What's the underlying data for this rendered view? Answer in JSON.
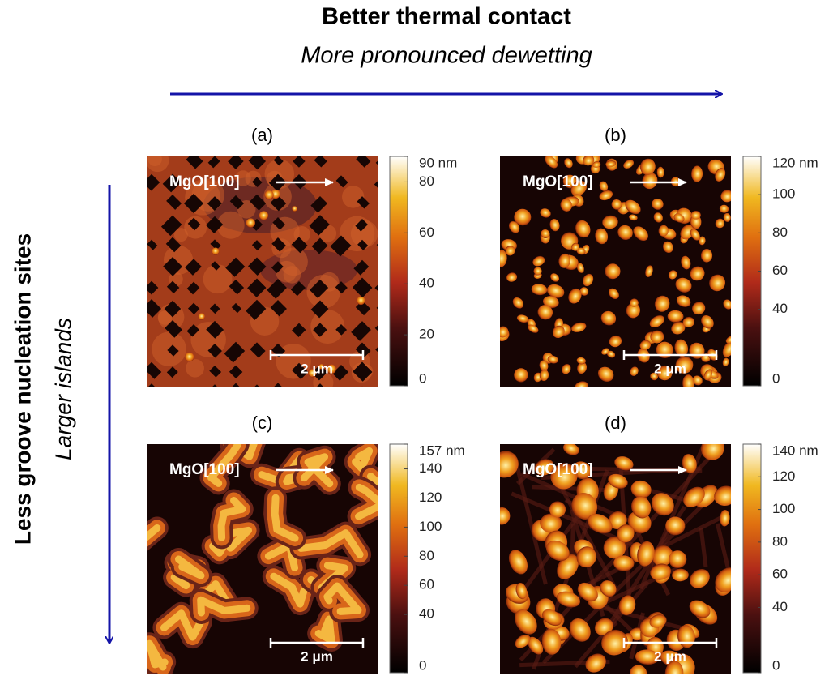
{
  "header": {
    "title": "Better thermal contact",
    "subtitle": "More pronounced dewetting"
  },
  "side": {
    "title": "Less groove nucleation sites",
    "subtitle": "Larger islands"
  },
  "panels": [
    {
      "label": "(a)",
      "direction": "MgO[100]",
      "scale_bar": "2 μm",
      "colorbar": {
        "range": [
          0,
          90
        ],
        "ticks": [
          0,
          20,
          40,
          60,
          80,
          {
            "value": 90,
            "label": "90 nm"
          }
        ]
      }
    },
    {
      "label": "(b)",
      "direction": "MgO[100]",
      "scale_bar": "2 μm",
      "colorbar": {
        "range": [
          0,
          120
        ],
        "ticks": [
          0,
          40,
          60,
          80,
          100,
          {
            "value": 120,
            "label": "120 nm"
          }
        ]
      }
    },
    {
      "label": "(c)",
      "direction": "MgO[100]",
      "scale_bar": "2 μm",
      "colorbar": {
        "range": [
          0,
          157
        ],
        "ticks": [
          0,
          40,
          60,
          80,
          100,
          120,
          140,
          {
            "value": 157,
            "label": "157 nm"
          }
        ]
      }
    },
    {
      "label": "(d)",
      "direction": "MgO[100]",
      "scale_bar": "2 μm",
      "colorbar": {
        "range": [
          0,
          140
        ],
        "ticks": [
          0,
          40,
          60,
          80,
          100,
          120,
          {
            "value": 140,
            "label": "140 nm"
          }
        ]
      }
    }
  ]
}
